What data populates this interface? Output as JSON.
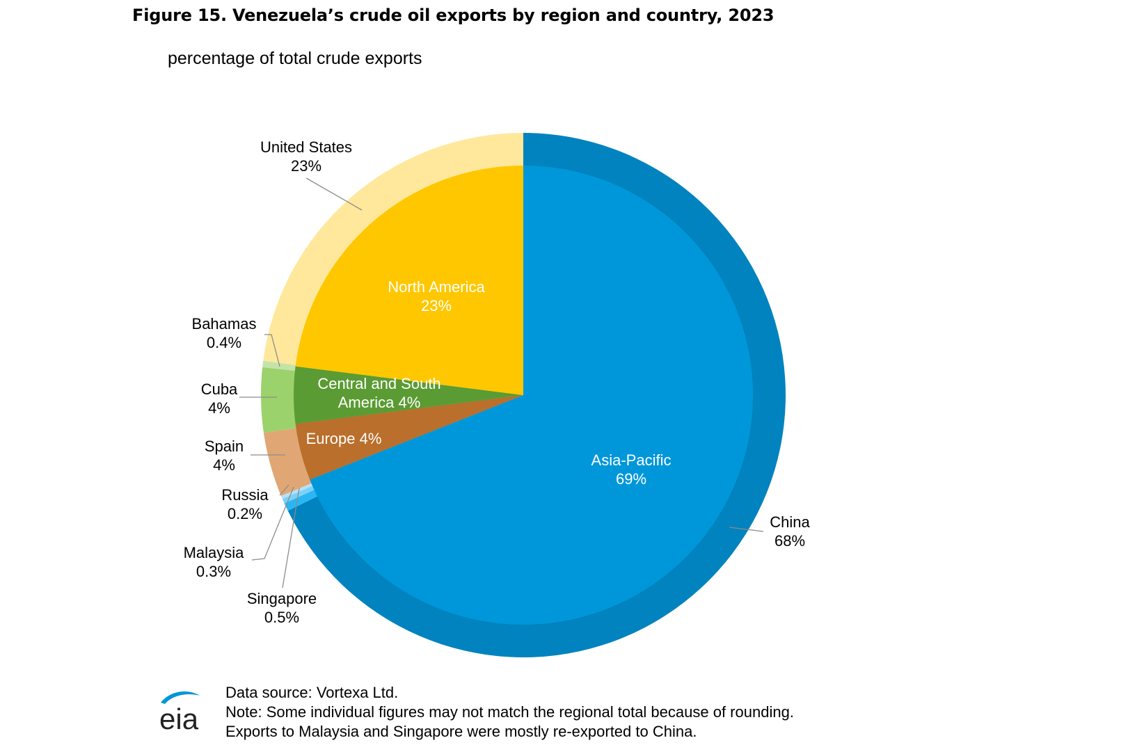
{
  "title": "Figure 15. Venezuela’s crude oil exports by region and country, 2023",
  "subtitle": "percentage of total crude exports",
  "chart_data": {
    "type": "pie",
    "inner_ring": [
      {
        "name": "Asia-Pacific",
        "value": 69,
        "label_lines": [
          "Asia-Pacific",
          "69%"
        ],
        "color": "#0097DA",
        "label_color": "#ffffff"
      },
      {
        "name": "Europe",
        "value": 4,
        "label_lines": [
          "Europe 4%"
        ],
        "color": "#BA6F2C",
        "label_color": "#ffffff"
      },
      {
        "name": "Central and South America",
        "value": 4,
        "label_lines": [
          "Central and South",
          "America 4%"
        ],
        "color": "#5B9B33",
        "label_color": "#ffffff"
      },
      {
        "name": "North America",
        "value": 23,
        "label_lines": [
          "North America",
          "23%"
        ],
        "color": "#FFC700",
        "label_color": "#ffffff"
      }
    ],
    "outer_ring": [
      {
        "name": "China",
        "value": 68,
        "label_lines": [
          "China",
          "68%"
        ],
        "color": "#0083BE"
      },
      {
        "name": "Singapore",
        "value": 0.5,
        "label_lines": [
          "Singapore",
          "0.5%"
        ],
        "color": "#2AB6F2"
      },
      {
        "name": "Malaysia",
        "value": 0.3,
        "label_lines": [
          "Malaysia",
          "0.3%"
        ],
        "color": "#7DD0F7"
      },
      {
        "name": "Russia",
        "value": 0.2,
        "label_lines": [
          "Russia",
          "0.2%"
        ],
        "color": "#B4E1F7"
      },
      {
        "name": "Spain",
        "value": 4,
        "label_lines": [
          "Spain",
          "4%"
        ],
        "color": "#E0A774"
      },
      {
        "name": "Cuba",
        "value": 4,
        "label_lines": [
          "Cuba",
          "4%"
        ],
        "color": "#9BD26B"
      },
      {
        "name": "Bahamas",
        "value": 0.4,
        "label_lines": [
          "Bahamas",
          "0.4%"
        ],
        "color": "#C4E3A8"
      },
      {
        "name": "United States",
        "value": 23,
        "label_lines": [
          "United States",
          "23%"
        ],
        "color": "#FFE89C"
      }
    ]
  },
  "footer": {
    "source": "Data source: Vortexa Ltd.",
    "note1": "Note: Some individual figures may not match the regional total because of rounding.",
    "note2": "Exports to Malaysia and Singapore were mostly re-exported to China."
  },
  "logo": {
    "text": "eia",
    "color": "#0096D6",
    "text_color": "#222222"
  }
}
